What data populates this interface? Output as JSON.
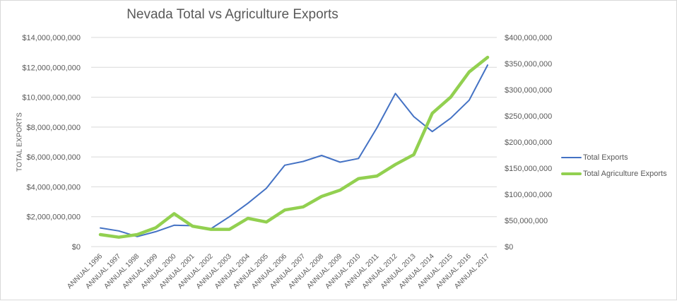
{
  "chart_data": {
    "type": "line",
    "title": "Nevada Total vs Agriculture Exports",
    "xlabel": "",
    "ylabel": "TOTAL EXPORTS",
    "y2label": "",
    "categories": [
      "ANNUAL 1996",
      "ANNUAL 1997",
      "ANNUAL 1998",
      "ANNUAL 1999",
      "ANNUAL 2000",
      "ANNUAL 2001",
      "ANNUAL 2002",
      "ANNUAL 2003",
      "ANNUAL 2004",
      "ANNUAL 2005",
      "ANNUAL 2006",
      "ANNUAL 2007",
      "ANNUAL 2008",
      "ANNUAL 2009",
      "ANNUAL 2010",
      "ANNUAL 2011",
      "ANNUAL 2012",
      "ANNUAL 2013",
      "ANNUAL 2014",
      "ANNUAL 2015",
      "ANNUAL 2016",
      "ANNUAL 2017"
    ],
    "series": [
      {
        "name": "Total Exports",
        "axis": "left",
        "color": "#4472C4",
        "values": [
          1250000000,
          1050000000,
          670000000,
          1000000000,
          1430000000,
          1400000000,
          1200000000,
          2000000000,
          2900000000,
          3900000000,
          5450000000,
          5700000000,
          6100000000,
          5650000000,
          5900000000,
          7950000000,
          10250000000,
          8700000000,
          7700000000,
          8600000000,
          9800000000,
          12150000000
        ]
      },
      {
        "name": "Total Agriculture Exports",
        "axis": "right",
        "color": "#92D050",
        "values": [
          23000000,
          18000000,
          23000000,
          36000000,
          63000000,
          39000000,
          33000000,
          33000000,
          54000000,
          47000000,
          70000000,
          76000000,
          96000000,
          108000000,
          130000000,
          135000000,
          157000000,
          176000000,
          255000000,
          286000000,
          334000000,
          362000000
        ]
      }
    ],
    "ylim": [
      0,
      14000000000
    ],
    "y2lim": [
      0,
      400000000
    ],
    "yticks": [
      "$0",
      "$2,000,000,000",
      "$4,000,000,000",
      "$6,000,000,000",
      "$8,000,000,000",
      "$10,000,000,000",
      "$12,000,000,000",
      "$14,000,000,000"
    ],
    "y2ticks": [
      "$0",
      "$50,000,000",
      "$100,000,000",
      "$150,000,000",
      "$200,000,000",
      "$250,000,000",
      "$300,000,000",
      "$350,000,000",
      "$400,000,000"
    ],
    "grid": true,
    "legend_position": "right"
  },
  "legend": {
    "items": [
      {
        "label": "Total Exports",
        "color": "#4472C4"
      },
      {
        "label": "Total Agriculture Exports",
        "color": "#92D050"
      }
    ]
  }
}
